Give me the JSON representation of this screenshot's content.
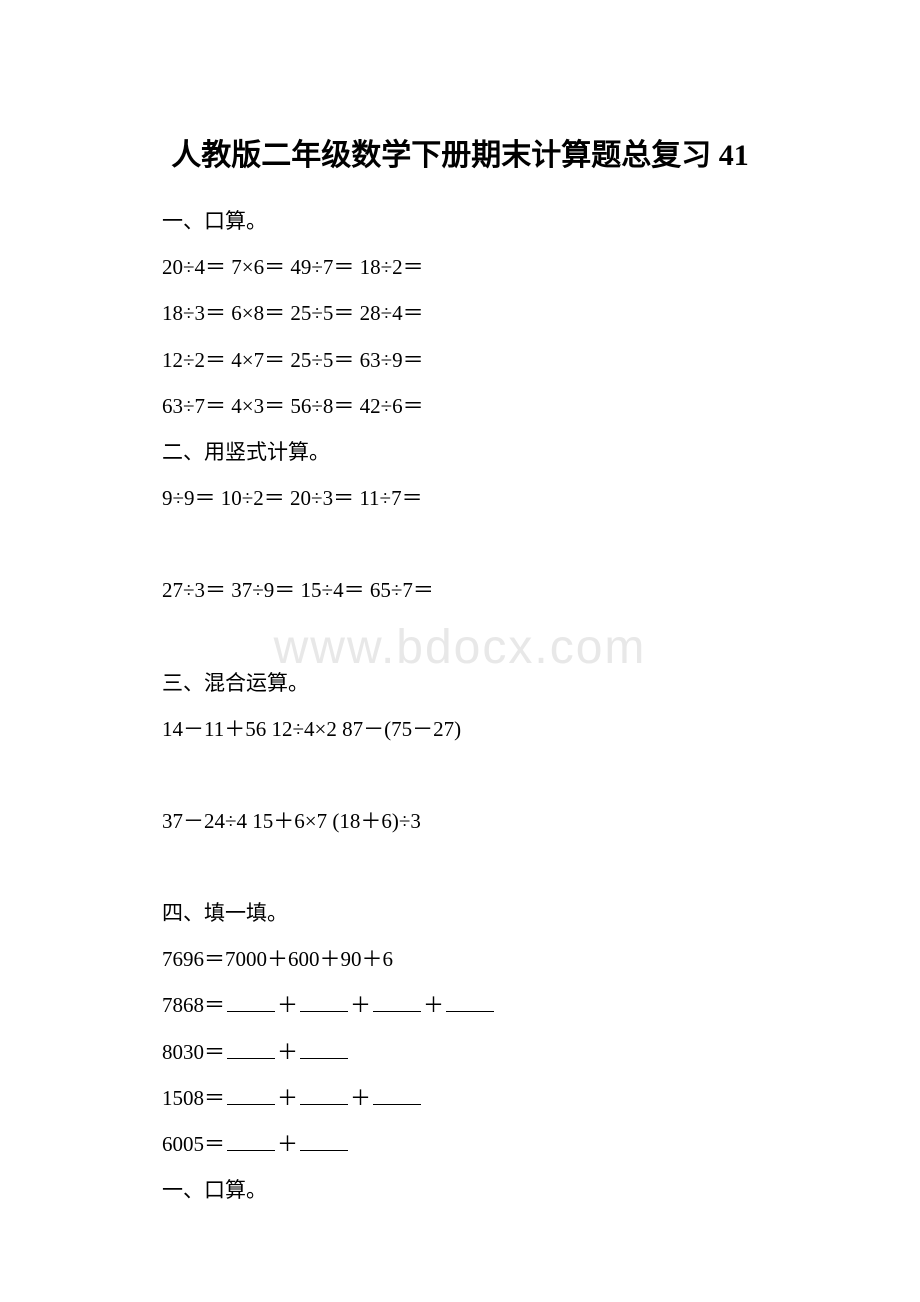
{
  "watermark": "www.bdocx.com",
  "title": "人教版二年级数学下册期末计算题总复习 41",
  "sections": {
    "s1": {
      "header": "一、口算。",
      "lines": [
        "20÷4＝  7×6＝  49÷7＝  18÷2＝",
        "18÷3＝  6×8＝  25÷5＝  28÷4＝",
        "12÷2＝  4×7＝  25÷5＝  63÷9＝",
        "63÷7＝  4×3＝  56÷8＝  42÷6＝"
      ]
    },
    "s2": {
      "header": "二、用竖式计算。",
      "lines": [
        "9÷9＝  10÷2＝  20÷3＝  11÷7＝",
        "27÷3＝  37÷9＝  15÷4＝  65÷7＝"
      ]
    },
    "s3": {
      "header": "三、混合运算。",
      "lines": [
        "14－11＋56   12÷4×2   87－(75－27)",
        "37－24÷4   15＋6×7   (18＋6)÷3"
      ]
    },
    "s4": {
      "header": "四、填一填。",
      "example": "7696＝7000＋600＋90＋6",
      "fills": [
        {
          "prefix": "7868＝",
          "blanks": 4
        },
        {
          "prefix": "8030＝",
          "blanks": 2
        },
        {
          "prefix": "1508＝",
          "blanks": 3
        },
        {
          "prefix": "6005＝",
          "blanks": 2
        }
      ]
    },
    "s5": {
      "header": "一、口算。"
    }
  },
  "colors": {
    "text": "#000000",
    "background": "#ffffff",
    "watermark": "#e8e8e8"
  },
  "typography": {
    "title_fontsize": 30,
    "body_fontsize": 21,
    "watermark_fontsize": 48
  }
}
